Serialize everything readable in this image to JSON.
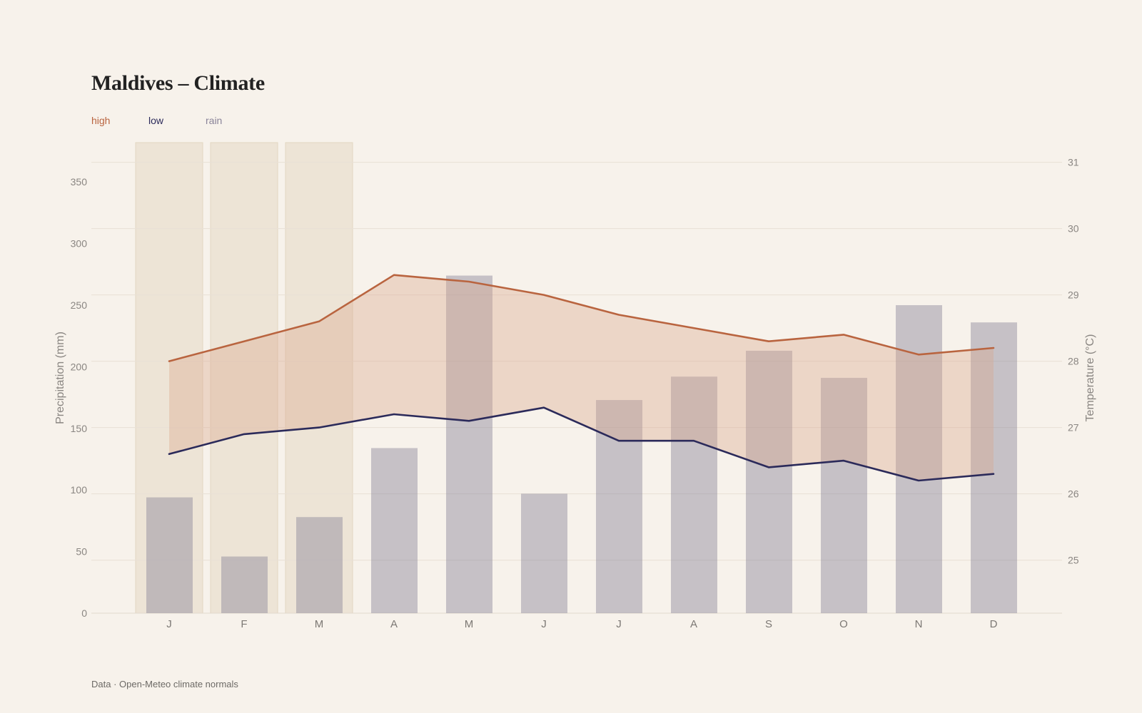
{
  "title": "Maldives – Climate",
  "source": "Data · Open-Meteo climate normals",
  "colors": {
    "background": "#f7f2eb",
    "high": "#b9643f",
    "low": "#2b2a5a",
    "rain": "#8a8499",
    "band": "#d9a88e",
    "highlight": "#e9dfcf"
  },
  "chart_data": {
    "type": "bar+line",
    "categories": [
      "J",
      "F",
      "M",
      "A",
      "M",
      "J",
      "J",
      "A",
      "S",
      "O",
      "N",
      "D"
    ],
    "highlighted_months": [
      "J",
      "F",
      "M"
    ],
    "series": [
      {
        "name": "rain",
        "type": "bar",
        "axis": "left",
        "values": [
          94,
          46,
          78,
          134,
          274,
          97,
          173,
          192,
          213,
          191,
          250,
          236
        ]
      },
      {
        "name": "high",
        "type": "line",
        "axis": "right",
        "values": [
          28.0,
          28.3,
          28.6,
          29.3,
          29.2,
          29.0,
          28.7,
          28.5,
          28.3,
          28.4,
          28.1,
          28.2
        ]
      },
      {
        "name": "low",
        "type": "line",
        "axis": "right",
        "values": [
          26.6,
          26.9,
          27.0,
          27.2,
          27.1,
          27.3,
          26.8,
          26.8,
          26.4,
          26.5,
          26.2,
          26.3
        ]
      }
    ],
    "band_between": [
      "low",
      "high"
    ],
    "left_axis": {
      "label": "Precipitation (mm)",
      "ticks": [
        0,
        50,
        100,
        150,
        200,
        250,
        300,
        350
      ],
      "range": [
        0,
        375
      ]
    },
    "right_axis": {
      "label": "Temperature (°C)",
      "ticks": [
        25,
        26,
        27,
        28,
        29,
        30,
        31
      ],
      "range": [
        24.2,
        31.3
      ]
    },
    "grid": true,
    "legend_position": "top-left"
  }
}
